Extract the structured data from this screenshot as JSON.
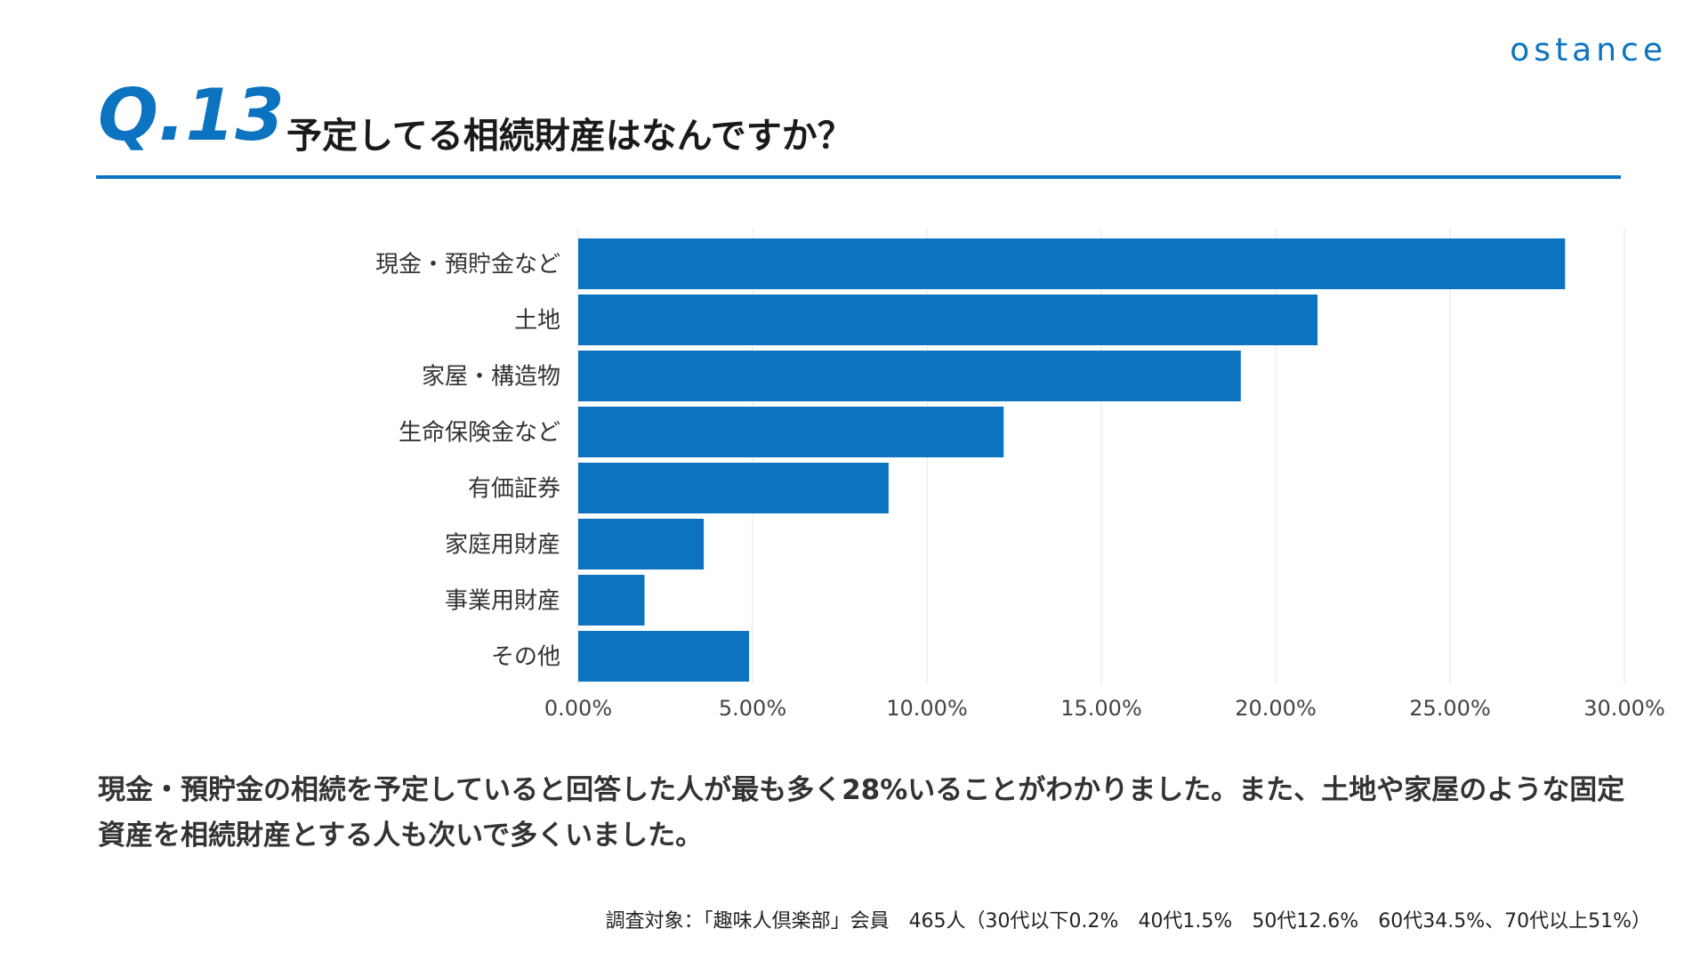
{
  "header": {
    "logo": "ostance",
    "question_number": "Q.13",
    "question_title": "予定してる相続財産はなんですか？"
  },
  "colors": {
    "accent": "#0b73c0",
    "bar": "#0b73c0",
    "grid": "#e6e6e6"
  },
  "chart_data": {
    "type": "bar",
    "orientation": "horizontal",
    "title": "",
    "xlabel": "",
    "ylabel": "",
    "categories": [
      "現金・預貯金など",
      "土地",
      "家屋・構造物",
      "生命保険金など",
      "有価証券",
      "家庭用財産",
      "事業用財産",
      "その他"
    ],
    "values": [
      28.3,
      21.2,
      19.0,
      12.2,
      8.9,
      3.6,
      1.9,
      4.9
    ],
    "xlim": [
      0,
      30
    ],
    "x_ticks": [
      0,
      5,
      10,
      15,
      20,
      25,
      30
    ],
    "x_tick_labels": [
      "0.00%",
      "5.00%",
      "10.00%",
      "15.00%",
      "20.00%",
      "25.00%",
      "30.00%"
    ],
    "grid": "vertical",
    "legend": "none"
  },
  "summary": {
    "text": "現金・預貯金の相続を予定していると回答した人が最も多く28%いることがわかりました。また、土地や家屋のような固定資産を相続財産とする人も次いで多くいました。"
  },
  "footnote": {
    "text": "調査対象：「趣味人倶楽部」会員　465人（30代以下0.2%　40代1.5%　50代12.6%　60代34.5%、70代以上51%）"
  }
}
